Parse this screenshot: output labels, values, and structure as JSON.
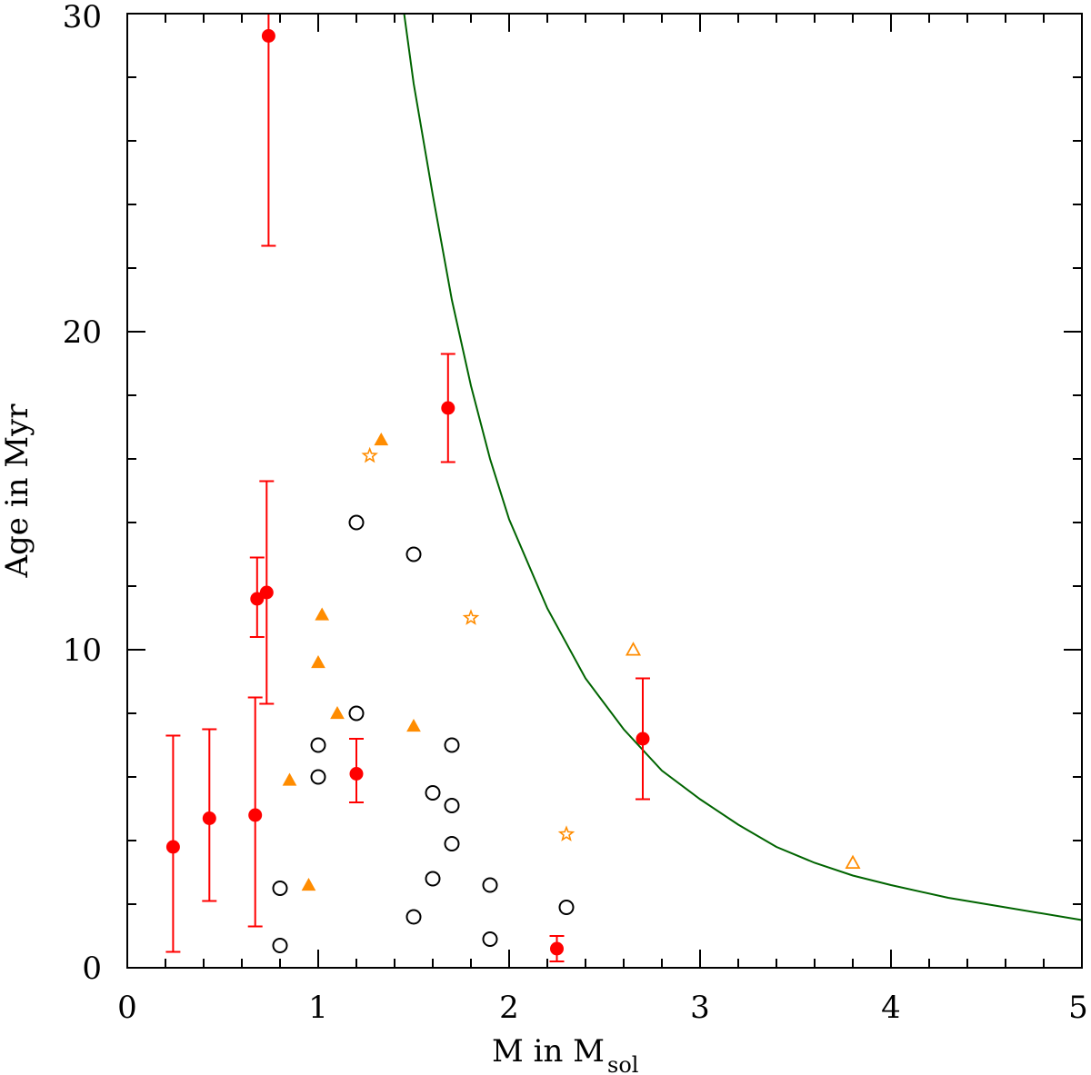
{
  "chart_data": {
    "type": "scatter",
    "xlabel": "M in M",
    "xlabel_subscript": "sol",
    "ylabel": "Age in Myr",
    "xlim": [
      0,
      5
    ],
    "ylim": [
      0,
      30
    ],
    "x_ticks": [
      "0",
      "1",
      "2",
      "3",
      "4",
      "5"
    ],
    "y_ticks": [
      "0",
      "10",
      "20",
      "30"
    ],
    "grid": false,
    "colors": {
      "errorbar": "#ff0000",
      "orange": "#ff8c00",
      "curve": "#006400",
      "open_circle": "#000000"
    },
    "series": [
      {
        "name": "red filled circles with error bars",
        "marker": "filled-circle",
        "points": [
          {
            "x": 0.24,
            "y": 3.8,
            "lo": 0.5,
            "hi": 7.3
          },
          {
            "x": 0.43,
            "y": 4.7,
            "lo": 2.1,
            "hi": 7.5
          },
          {
            "x": 0.67,
            "y": 4.8,
            "lo": 1.3,
            "hi": 8.5
          },
          {
            "x": 0.68,
            "y": 11.6,
            "lo": 10.4,
            "hi": 12.9
          },
          {
            "x": 0.73,
            "y": 11.8,
            "lo": 8.3,
            "hi": 15.3
          },
          {
            "x": 0.74,
            "y": 29.3,
            "lo": 22.7,
            "hi": 30.0
          },
          {
            "x": 1.2,
            "y": 6.1,
            "lo": 5.2,
            "hi": 7.2
          },
          {
            "x": 1.68,
            "y": 17.6,
            "lo": 15.9,
            "hi": 19.3
          },
          {
            "x": 2.25,
            "y": 0.6,
            "lo": 0.2,
            "hi": 1.0
          },
          {
            "x": 2.7,
            "y": 7.2,
            "lo": 5.3,
            "hi": 9.1
          }
        ]
      },
      {
        "name": "open black circles",
        "marker": "open-circle",
        "points": [
          {
            "x": 0.8,
            "y": 2.5
          },
          {
            "x": 0.8,
            "y": 0.7
          },
          {
            "x": 1.0,
            "y": 7.0
          },
          {
            "x": 1.0,
            "y": 6.0
          },
          {
            "x": 1.2,
            "y": 14.0
          },
          {
            "x": 1.2,
            "y": 8.0
          },
          {
            "x": 1.5,
            "y": 13.0
          },
          {
            "x": 1.5,
            "y": 1.6
          },
          {
            "x": 1.6,
            "y": 5.5
          },
          {
            "x": 1.6,
            "y": 2.8
          },
          {
            "x": 1.7,
            "y": 7.0
          },
          {
            "x": 1.7,
            "y": 5.1
          },
          {
            "x": 1.7,
            "y": 3.9
          },
          {
            "x": 1.9,
            "y": 2.6
          },
          {
            "x": 1.9,
            "y": 0.9
          },
          {
            "x": 2.3,
            "y": 1.9
          }
        ]
      },
      {
        "name": "orange filled triangles",
        "marker": "filled-triangle",
        "points": [
          {
            "x": 0.85,
            "y": 5.9
          },
          {
            "x": 0.95,
            "y": 2.6
          },
          {
            "x": 1.0,
            "y": 9.6
          },
          {
            "x": 1.02,
            "y": 11.1
          },
          {
            "x": 1.1,
            "y": 8.0
          },
          {
            "x": 1.33,
            "y": 16.6
          },
          {
            "x": 1.5,
            "y": 7.6
          }
        ]
      },
      {
        "name": "orange open stars",
        "marker": "open-star",
        "points": [
          {
            "x": 1.27,
            "y": 16.1
          },
          {
            "x": 1.8,
            "y": 11.0
          },
          {
            "x": 2.3,
            "y": 4.2
          }
        ]
      },
      {
        "name": "orange open triangles",
        "marker": "open-triangle",
        "points": [
          {
            "x": 2.65,
            "y": 10.0
          },
          {
            "x": 3.8,
            "y": 3.3
          }
        ]
      },
      {
        "name": "green curve",
        "marker": "line",
        "points": [
          {
            "x": 1.45,
            "y": 30.0
          },
          {
            "x": 1.5,
            "y": 27.8
          },
          {
            "x": 1.6,
            "y": 24.3
          },
          {
            "x": 1.7,
            "y": 21.0
          },
          {
            "x": 1.8,
            "y": 18.3
          },
          {
            "x": 1.9,
            "y": 16.0
          },
          {
            "x": 2.0,
            "y": 14.1
          },
          {
            "x": 2.2,
            "y": 11.3
          },
          {
            "x": 2.4,
            "y": 9.1
          },
          {
            "x": 2.6,
            "y": 7.5
          },
          {
            "x": 2.8,
            "y": 6.2
          },
          {
            "x": 3.0,
            "y": 5.3
          },
          {
            "x": 3.2,
            "y": 4.5
          },
          {
            "x": 3.4,
            "y": 3.8
          },
          {
            "x": 3.6,
            "y": 3.3
          },
          {
            "x": 3.8,
            "y": 2.9
          },
          {
            "x": 4.0,
            "y": 2.6
          },
          {
            "x": 4.3,
            "y": 2.2
          },
          {
            "x": 4.6,
            "y": 1.9
          },
          {
            "x": 5.0,
            "y": 1.5
          }
        ]
      }
    ]
  }
}
